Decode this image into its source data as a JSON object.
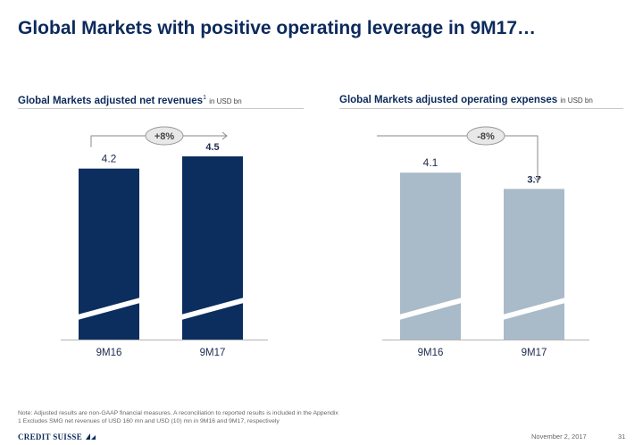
{
  "title": "Global Markets with positive operating leverage in 9M17…",
  "chart_data": [
    {
      "type": "bar",
      "title": "Global Markets adjusted net revenues",
      "title_sup": "1",
      "unit": "in USD bn",
      "categories": [
        "9M16",
        "9M17"
      ],
      "values": [
        4.2,
        4.5
      ],
      "value_labels": [
        "4.2",
        "4.5"
      ],
      "ylim": [
        0,
        4.5
      ],
      "axis_break": true,
      "change_label": "+8%",
      "change_direction": "up",
      "color": "#0b2e5e",
      "highlight_last_label": true
    },
    {
      "type": "bar",
      "title": "Global Markets adjusted operating expenses",
      "title_sup": "",
      "unit": "in USD bn",
      "categories": [
        "9M16",
        "9M17"
      ],
      "values": [
        4.1,
        3.7
      ],
      "value_labels": [
        "4.1",
        "3.7"
      ],
      "ylim": [
        0,
        4.5
      ],
      "axis_break": true,
      "change_label": "-8%",
      "change_direction": "down",
      "color": "#a9bac9",
      "highlight_last_label": true
    }
  ],
  "footnotes": [
    "Note: Adjusted results are non-GAAP financial measures. A reconciliation to reported results is included in the Appendix",
    "1 Excludes SMG net revenues of USD 160 mn and USD (10) mn in 9M16 and 9M17, respectively"
  ],
  "footer": {
    "logo": "CREDIT SUISSE",
    "date": "November 2, 2017",
    "page": "31"
  },
  "colors": {
    "title": "#0c2a5c",
    "dark_bar": "#0b2e5e",
    "light_bar": "#a9bac9",
    "connector": "#8a8a8a",
    "badge_fill": "#e8e8e8"
  }
}
